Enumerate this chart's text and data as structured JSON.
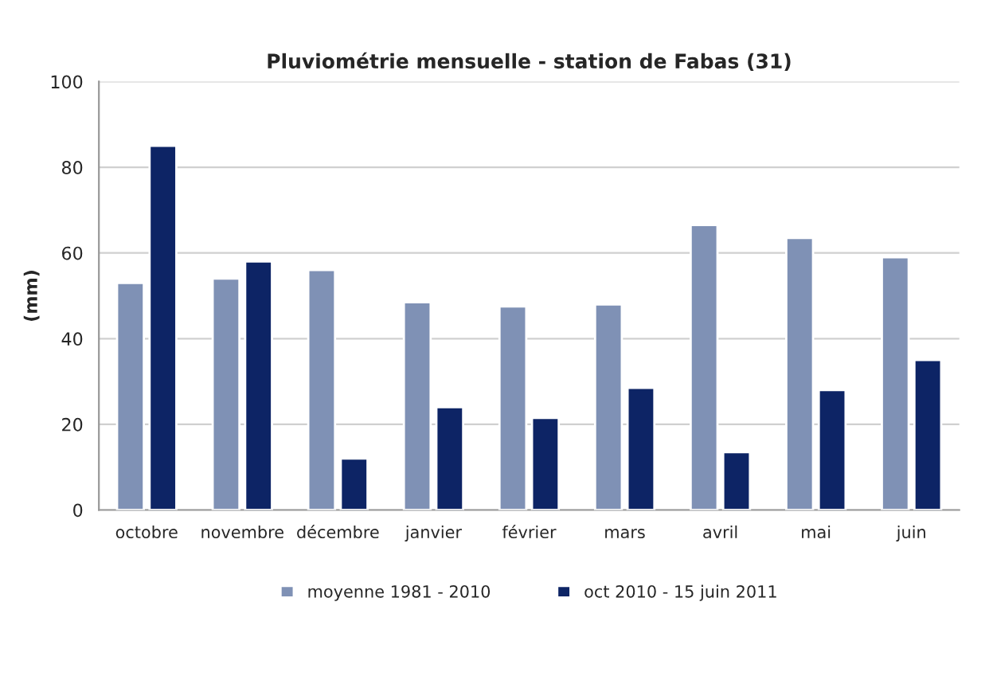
{
  "chart_data": {
    "type": "bar",
    "title": "Pluviométrie mensuelle - station de Fabas (31)",
    "ylabel": "(mm)",
    "categories": [
      "octobre",
      "novembre",
      "décembre",
      "janvier",
      "février",
      "mars",
      "avril",
      "mai",
      "juin"
    ],
    "series": [
      {
        "name": "moyenne 1981 - 2010",
        "color": "#7f91b5",
        "values": [
          53,
          54,
          56,
          48.5,
          47.5,
          48,
          66.5,
          63.5,
          59
        ]
      },
      {
        "name": "oct 2010 - 15 juin 2011",
        "color": "#0d2465",
        "values": [
          85,
          58,
          12,
          24,
          21.5,
          28.5,
          13.5,
          28,
          35
        ]
      }
    ],
    "ylim": [
      0,
      100
    ],
    "yticks": [
      0,
      20,
      40,
      60,
      80,
      100
    ],
    "grid": "y",
    "legend": "bottom"
  }
}
